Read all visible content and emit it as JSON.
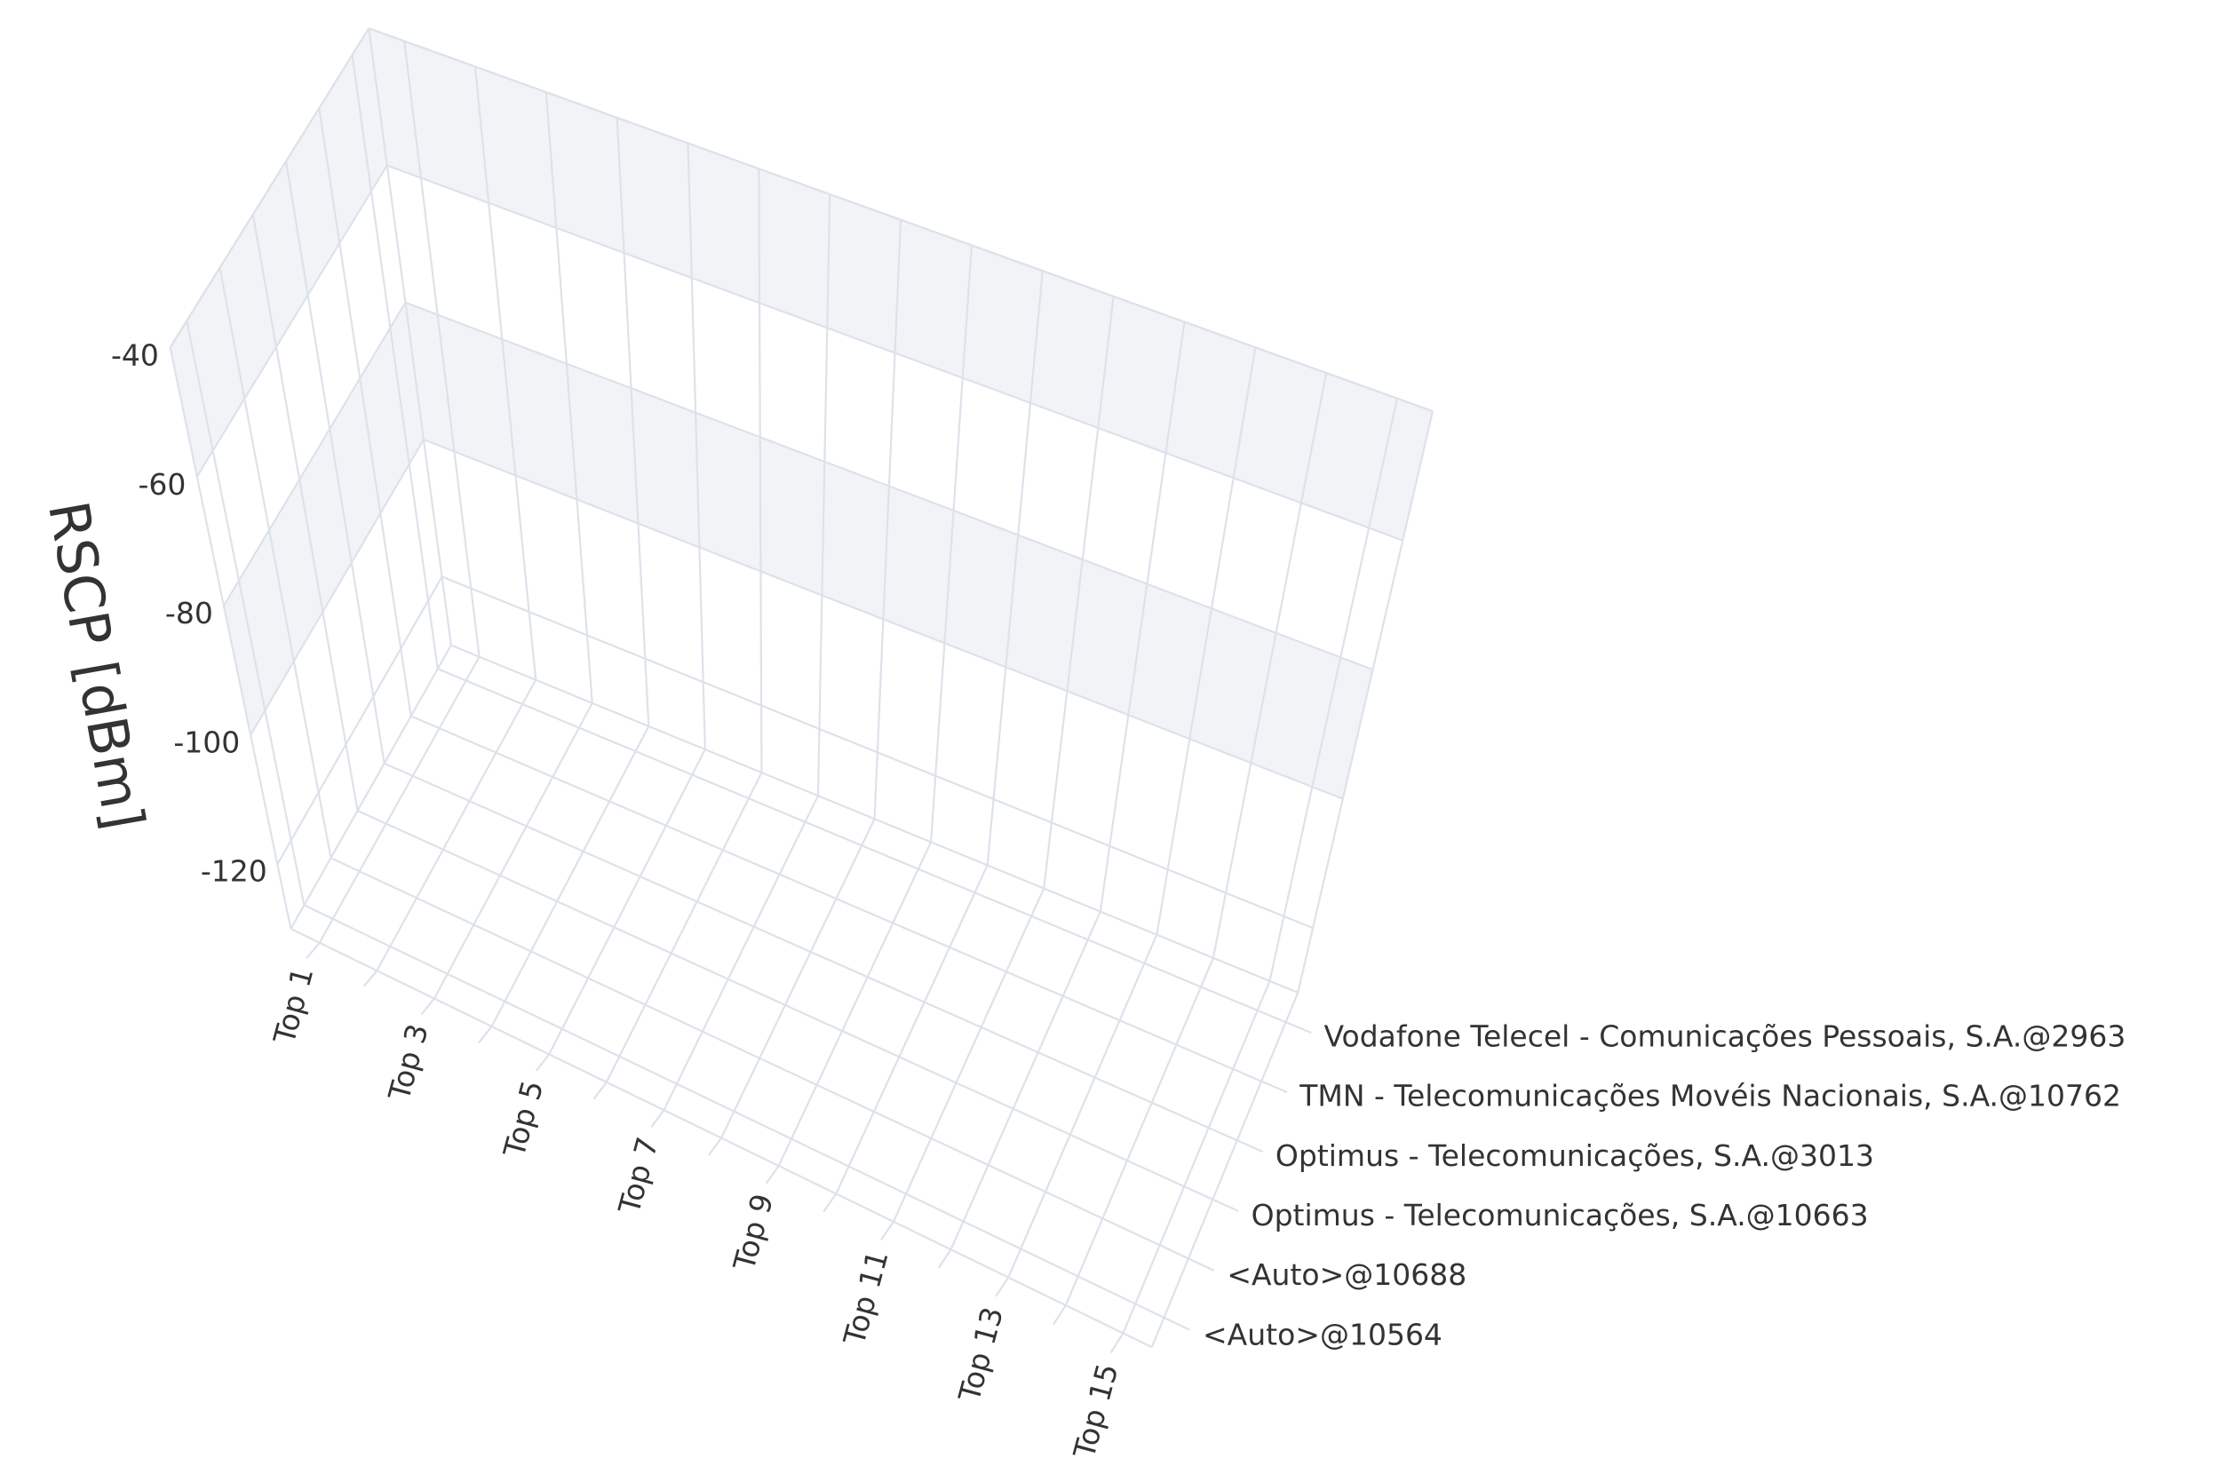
{
  "chart_data": {
    "type": "surface3d",
    "zaxis_title": "RSCP [dBm]",
    "categories": [
      "Top 1",
      null,
      "Top 3",
      null,
      "Top 5",
      null,
      "Top 7",
      null,
      "Top 9",
      null,
      "Top 11",
      null,
      "Top 13",
      null,
      "Top 15"
    ],
    "y_categories": [
      "<Auto>@10564",
      "<Auto>@10688",
      "Optimus - Telecomunicações, S.A.@10663",
      "Optimus - Telecomunicações, S.A.@3013",
      "TMN - Telecomunicações Movéis Nacionais, S.A.@10762",
      "Vodafone Telecel - Comunicações Pessoais, S.A.@2963"
    ],
    "zlim": [
      -130,
      -40
    ],
    "zticks": [
      -120,
      -100,
      -80,
      -60,
      -40
    ],
    "grid": true,
    "grid_color": "#dde2ea",
    "band_color": "#f1f3f6"
  }
}
